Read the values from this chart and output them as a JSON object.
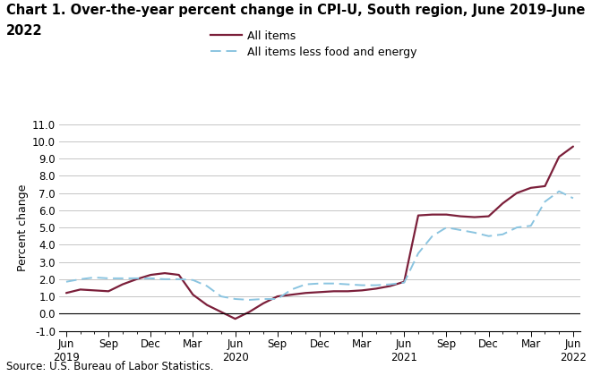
{
  "title_line1": "Chart 1. Over-the-year percent change in CPI-U, South region, June 2019–June",
  "title_line2": "2022",
  "ylabel": "Percent change",
  "source": "Source: U.S. Bureau of Labor Statistics.",
  "ylim": [
    -1.0,
    11.0
  ],
  "yticks": [
    -1.0,
    0.0,
    1.0,
    2.0,
    3.0,
    4.0,
    5.0,
    6.0,
    7.0,
    8.0,
    9.0,
    10.0,
    11.0
  ],
  "x_labels": [
    "Jun\n2019",
    "Sep",
    "Dec",
    "Mar",
    "Jun\n2020",
    "Sep",
    "Dec",
    "Mar",
    "Jun\n2021",
    "Sep",
    "Dec",
    "Mar",
    "Jun\n2022"
  ],
  "all_items_x": [
    0,
    1,
    2,
    3,
    4,
    5,
    6,
    7,
    8,
    9,
    10,
    11,
    12,
    13,
    14,
    15,
    16,
    17,
    18,
    19,
    20,
    21,
    22,
    23,
    24,
    25,
    26,
    27,
    28,
    29,
    30,
    31,
    32,
    33,
    34,
    35,
    36
  ],
  "all_items_y": [
    1.2,
    1.4,
    1.35,
    1.3,
    1.7,
    2.0,
    2.25,
    2.35,
    2.25,
    1.1,
    0.5,
    0.1,
    -0.3,
    0.1,
    0.6,
    1.0,
    1.1,
    1.2,
    1.25,
    1.3,
    1.3,
    1.35,
    1.45,
    1.6,
    1.85,
    5.7,
    5.75,
    5.75,
    5.65,
    5.6,
    5.65,
    6.4,
    7.0,
    7.3,
    7.4,
    9.1,
    9.7
  ],
  "all_less_x": [
    0,
    1,
    2,
    3,
    4,
    5,
    6,
    7,
    8,
    9,
    10,
    11,
    12,
    13,
    14,
    15,
    16,
    17,
    18,
    19,
    20,
    21,
    22,
    23,
    24,
    25,
    26,
    27,
    28,
    29,
    30,
    31,
    32,
    33,
    34,
    35,
    36
  ],
  "all_less_y": [
    1.85,
    2.0,
    2.1,
    2.05,
    2.05,
    2.05,
    2.05,
    2.0,
    2.0,
    1.95,
    1.6,
    1.0,
    0.85,
    0.8,
    0.85,
    0.85,
    1.4,
    1.7,
    1.75,
    1.75,
    1.7,
    1.65,
    1.65,
    1.7,
    1.8,
    3.5,
    4.5,
    5.0,
    4.85,
    4.7,
    4.5,
    4.6,
    5.0,
    5.1,
    6.5,
    7.1,
    6.7
  ],
  "all_items_color": "#7B1F3A",
  "all_items_less_color": "#8AC4E0",
  "background_color": "#ffffff",
  "grid_color": "#bbbbbb",
  "title_fontsize": 10.5,
  "label_fontsize": 9,
  "tick_fontsize": 8.5,
  "source_fontsize": 8.5,
  "legend_label1": "All items",
  "legend_label2": "All items less food and energy"
}
